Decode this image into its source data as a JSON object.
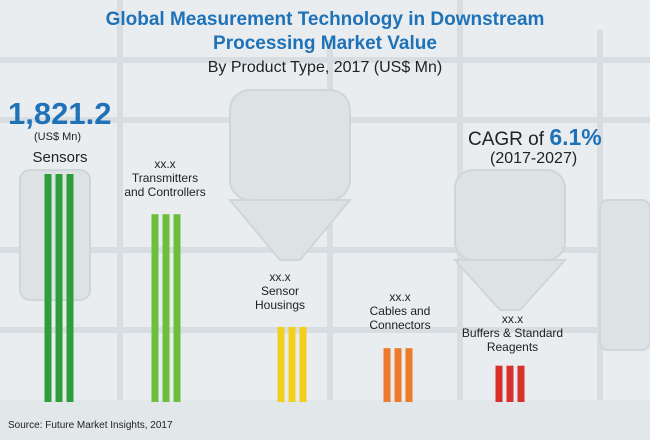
{
  "chart_data": {
    "type": "bar",
    "title": "Global Measurement Technology in Downstream Processing Market Value",
    "title_lines": [
      "Global Measurement Technology in Downstream",
      "Processing Market Value"
    ],
    "subtitle": "By Product Type, 2017 (US$ Mn)",
    "categories": [
      "Sensors",
      "Transmitters and Controllers",
      "Sensor Housings",
      "Cables and Connectors",
      "Buffers & Standard Reagents"
    ],
    "category_label_lines": [
      [
        "Sensors"
      ],
      [
        "Transmitters",
        "and Controllers"
      ],
      [
        "Sensor",
        "Housings"
      ],
      [
        "Cables and",
        "Connectors"
      ],
      [
        "Buffers & Standard",
        "Reagents"
      ]
    ],
    "value_labels": [
      "1,821.2",
      "xx.x",
      "xx.x",
      "xx.x",
      "xx.x"
    ],
    "value_unit": "(US$ Mn)",
    "values": [
      1821.2,
      1500,
      600,
      430,
      290
    ],
    "bar_colors": [
      "#2e9e3c",
      "#6cbf3b",
      "#f2cf1d",
      "#ee7a2b",
      "#d9302a"
    ],
    "cagr": {
      "prefix": "CAGR of",
      "value": "6.1%",
      "period": "(2017-2027)"
    },
    "source": "Source: Future Market Insights, 2017",
    "xlabel": "",
    "ylabel": "",
    "grid": false,
    "legend": "none"
  }
}
